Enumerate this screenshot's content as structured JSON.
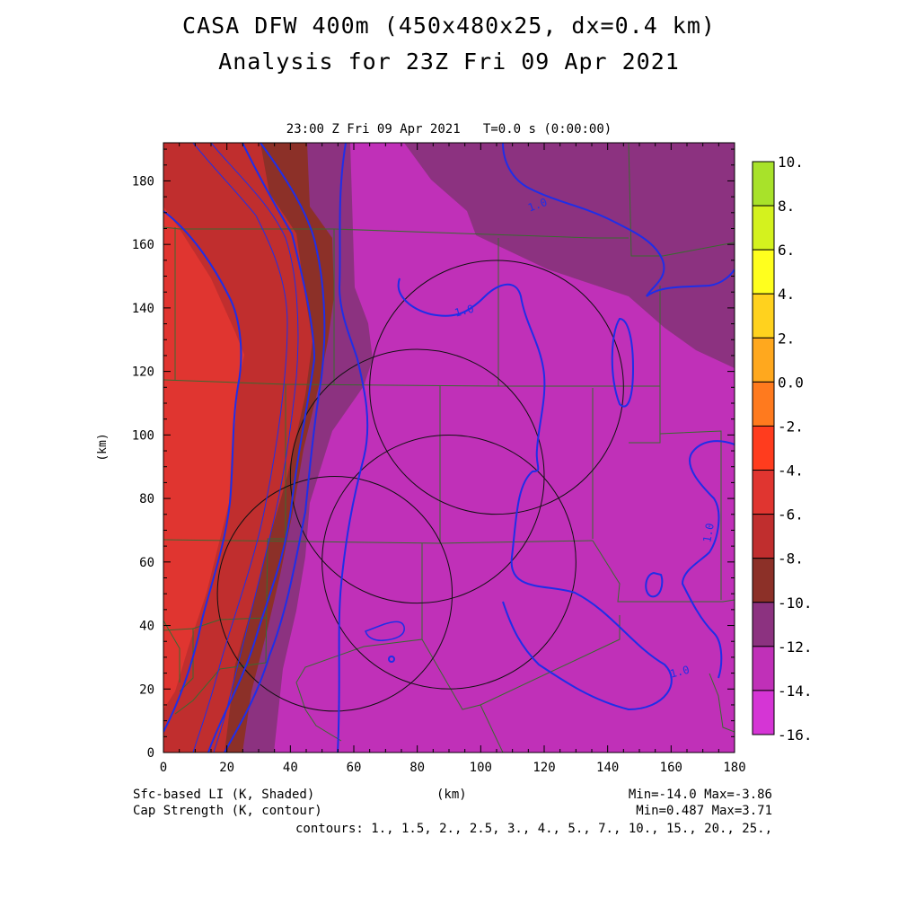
{
  "title_line1": "CASA DFW 400m (450x480x25, dx=0.4 km)",
  "title_line2": "Analysis for 23Z Fri 09 Apr 2021",
  "subtitle": "23:00 Z Fri 09 Apr 2021   T=0.0 s (0:00:00)",
  "footer": {
    "left1": "Sfc-based LI (K, Shaded)",
    "left2": "Cap Strength (K, contour)",
    "center": "(km)",
    "right1": "Min=-14.0 Max=-3.86",
    "right2": "Min=0.487 Max=3.71",
    "contours": "contours: 1., 1.5, 2., 2.5, 3., 4., 5., 7., 10., 15., 20., 25.,"
  },
  "chart_data": {
    "type": "heatmap",
    "title": "CASA DFW 400m (450x480x25, dx=0.4 km) Analysis for 23Z Fri 09 Apr 2021",
    "xlabel": "",
    "ylabel": "(km)",
    "xlim": [
      0,
      180
    ],
    "ylim": [
      0,
      192
    ],
    "x_ticks": [
      "0",
      "20",
      "40",
      "60",
      "80",
      "100",
      "120",
      "140",
      "160",
      "180"
    ],
    "y_ticks": [
      "0",
      "20",
      "40",
      "60",
      "80",
      "100",
      "120",
      "140",
      "160",
      "180"
    ],
    "colorbar": {
      "levels": [
        "10.",
        "8.",
        "6.",
        "4.",
        "2.",
        "0.0",
        "-2.",
        "-4.",
        "-6.",
        "-8.",
        "-10.",
        "-12.",
        "-14.",
        "-16."
      ],
      "colors": [
        "#a8e22a",
        "#d4f21e",
        "#ffff1e",
        "#ffd21e",
        "#ffa81e",
        "#ff7a1e",
        "#ff3c1e",
        "#e03530",
        "#c02e2e",
        "#8c3028",
        "#8c3280",
        "#c030b8",
        "#d535d5"
      ]
    },
    "shaded_field": "Sfc-based LI (K, Shaded)",
    "contour_field": "Cap Strength (K, contour)",
    "shaded_min": -14.0,
    "shaded_max": -3.86,
    "contour_min": 0.487,
    "contour_max": 3.71,
    "contour_levels": [
      1,
      1.5,
      2,
      2.5,
      3,
      4,
      5,
      7,
      10,
      15,
      20,
      25
    ],
    "contour_labels": [
      "1.0",
      "1.0",
      "1.0",
      "1.0"
    ],
    "radar_circles": [
      {
        "cx": 105,
        "cy": 115,
        "r": 40
      },
      {
        "cx": 80,
        "cy": 87,
        "r": 40
      },
      {
        "cx": 90,
        "cy": 60,
        "r": 40
      },
      {
        "cx": 54,
        "cy": 50,
        "r": 37
      }
    ]
  }
}
